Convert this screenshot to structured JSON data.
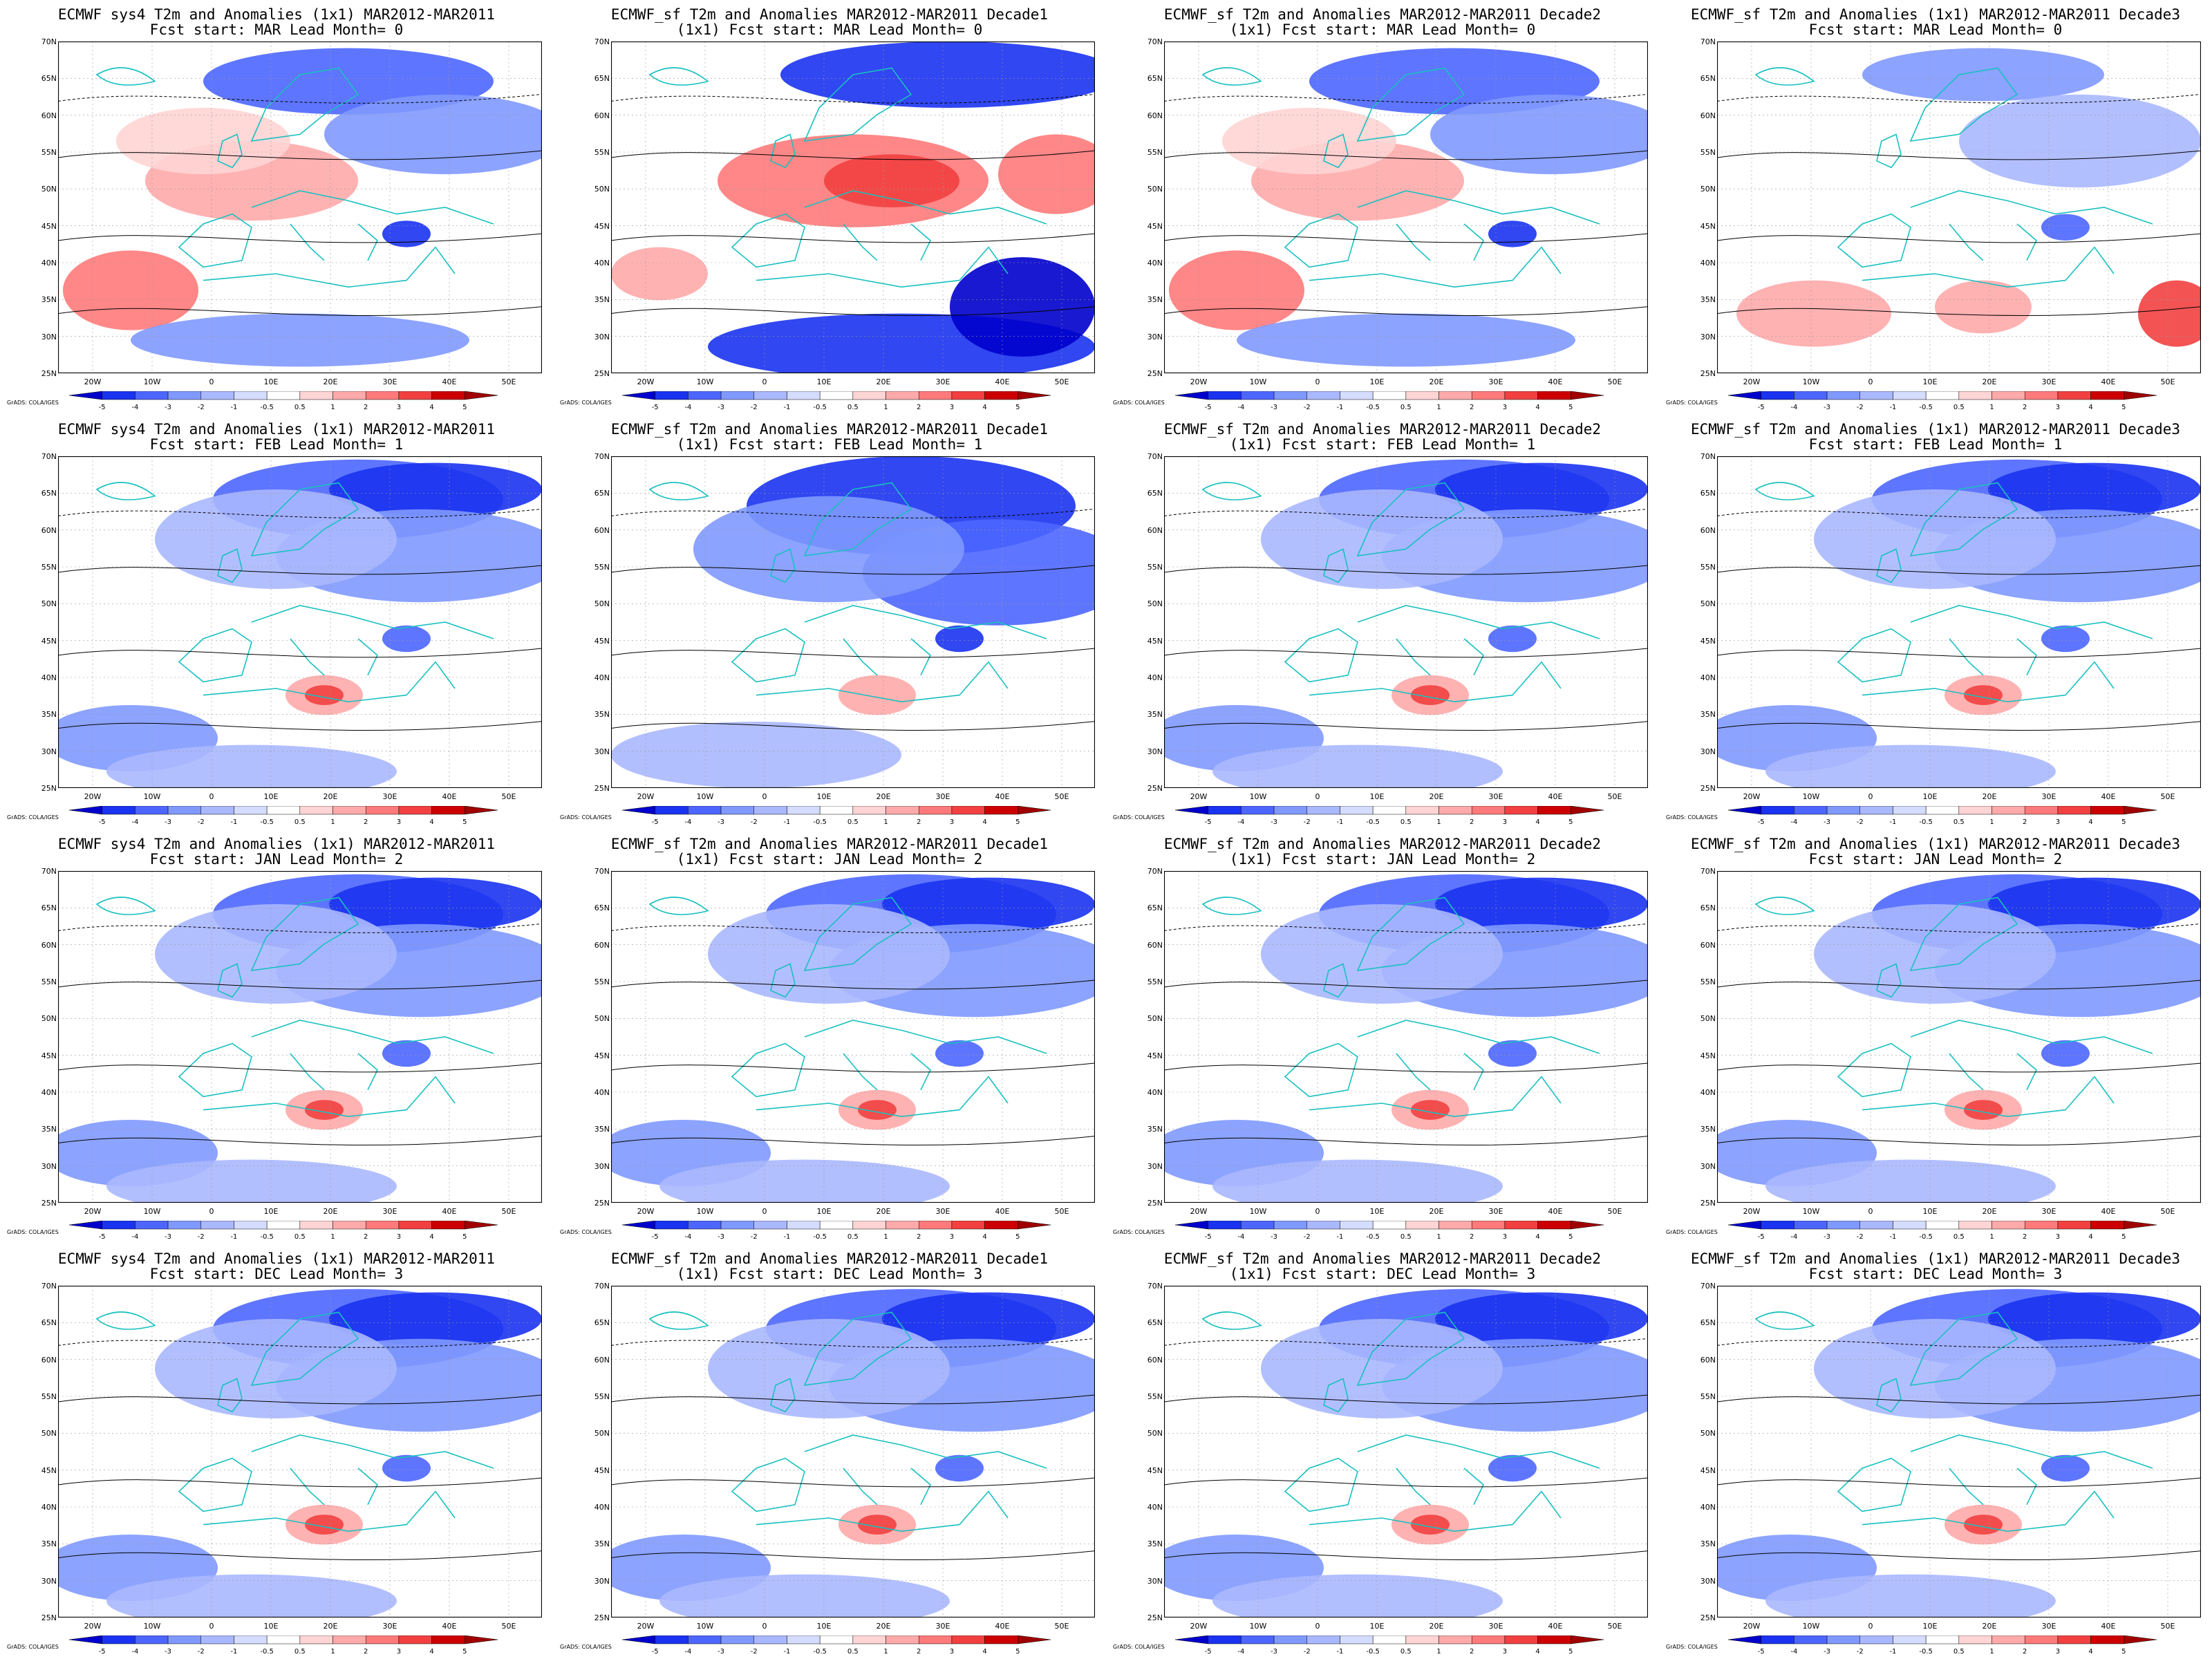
{
  "credit": "GrADS: COLA/IGES",
  "lat_labels": [
    "70N",
    "65N",
    "60N",
    "55N",
    "50N",
    "45N",
    "40N",
    "35N",
    "30N",
    "25N"
  ],
  "lon_labels": [
    "20W",
    "10W",
    "0",
    "10E",
    "20E",
    "30E",
    "40E",
    "50E"
  ],
  "colorbar": {
    "levels": [
      "-5",
      "-4",
      "-3",
      "-2",
      "-1",
      "-0.5",
      "0.5",
      "1",
      "2",
      "3",
      "4",
      "5"
    ],
    "colors": [
      "#0000cc",
      "#1a33f0",
      "#4d66ff",
      "#8099ff",
      "#aab8ff",
      "#d4dcff",
      "#ffffff",
      "#ffd4d4",
      "#ffaaaa",
      "#ff7a7a",
      "#f24040",
      "#cc0000",
      "#a00000"
    ]
  },
  "panels": [
    {
      "title": "ECMWF sys4 T2m and Anomalies (1x1) MAR2012-MAR2011",
      "subtitle": "Fcst start: MAR  Lead Month= 0",
      "anomaly": "warm"
    },
    {
      "title": "ECMWF_sf T2m and Anomalies MAR2012-MAR2011 Decade1",
      "subtitle": "(1x1) Fcst start: MAR  Lead Month= 0",
      "anomaly": "warm-strong"
    },
    {
      "title": "ECMWF_sf T2m and Anomalies MAR2012-MAR2011 Decade2",
      "subtitle": "(1x1) Fcst start: MAR  Lead Month= 0",
      "anomaly": "warm"
    },
    {
      "title": "ECMWF_sf T2m and Anomalies (1x1) MAR2012-MAR2011 Decade3",
      "subtitle": "Fcst start: MAR  Lead Month= 0",
      "anomaly": "mixed"
    },
    {
      "title": "ECMWF sys4 T2m and Anomalies (1x1) MAR2012-MAR2011",
      "subtitle": "Fcst start: FEB  Lead Month= 1",
      "anomaly": "cold"
    },
    {
      "title": "ECMWF_sf T2m and Anomalies MAR2012-MAR2011 Decade1",
      "subtitle": "(1x1) Fcst start: FEB  Lead Month= 1",
      "anomaly": "cold-strong"
    },
    {
      "title": "ECMWF_sf T2m and Anomalies MAR2012-MAR2011 Decade2",
      "subtitle": "(1x1) Fcst start: FEB  Lead Month= 1",
      "anomaly": "cold"
    },
    {
      "title": "ECMWF_sf T2m and Anomalies (1x1) MAR2012-MAR2011 Decade3",
      "subtitle": "Fcst start: FEB  Lead Month= 1",
      "anomaly": "cold"
    },
    {
      "title": "ECMWF sys4 T2m and Anomalies (1x1) MAR2012-MAR2011",
      "subtitle": "Fcst start: JAN  Lead Month= 2",
      "anomaly": "cold"
    },
    {
      "title": "ECMWF_sf T2m and Anomalies MAR2012-MAR2011 Decade1",
      "subtitle": "(1x1) Fcst start: JAN  Lead Month= 2",
      "anomaly": "cold"
    },
    {
      "title": "ECMWF_sf T2m and Anomalies MAR2012-MAR2011 Decade2",
      "subtitle": "(1x1) Fcst start: JAN  Lead Month= 2",
      "anomaly": "cold"
    },
    {
      "title": "ECMWF_sf T2m and Anomalies (1x1) MAR2012-MAR2011 Decade3",
      "subtitle": "Fcst start: JAN  Lead Month= 2",
      "anomaly": "cold"
    },
    {
      "title": "ECMWF sys4 T2m and Anomalies (1x1) MAR2012-MAR2011",
      "subtitle": "Fcst start: DEC  Lead Month= 3",
      "anomaly": "cold"
    },
    {
      "title": "ECMWF_sf T2m and Anomalies MAR2012-MAR2011 Decade1",
      "subtitle": "(1x1) Fcst start: DEC  Lead Month= 3",
      "anomaly": "cold"
    },
    {
      "title": "ECMWF_sf T2m and Anomalies MAR2012-MAR2011 Decade2",
      "subtitle": "(1x1) Fcst start: DEC  Lead Month= 3",
      "anomaly": "cold"
    },
    {
      "title": "ECMWF_sf T2m and Anomalies (1x1) MAR2012-MAR2011 Decade3",
      "subtitle": "Fcst start: DEC  Lead Month= 3",
      "anomaly": "cold"
    }
  ]
}
